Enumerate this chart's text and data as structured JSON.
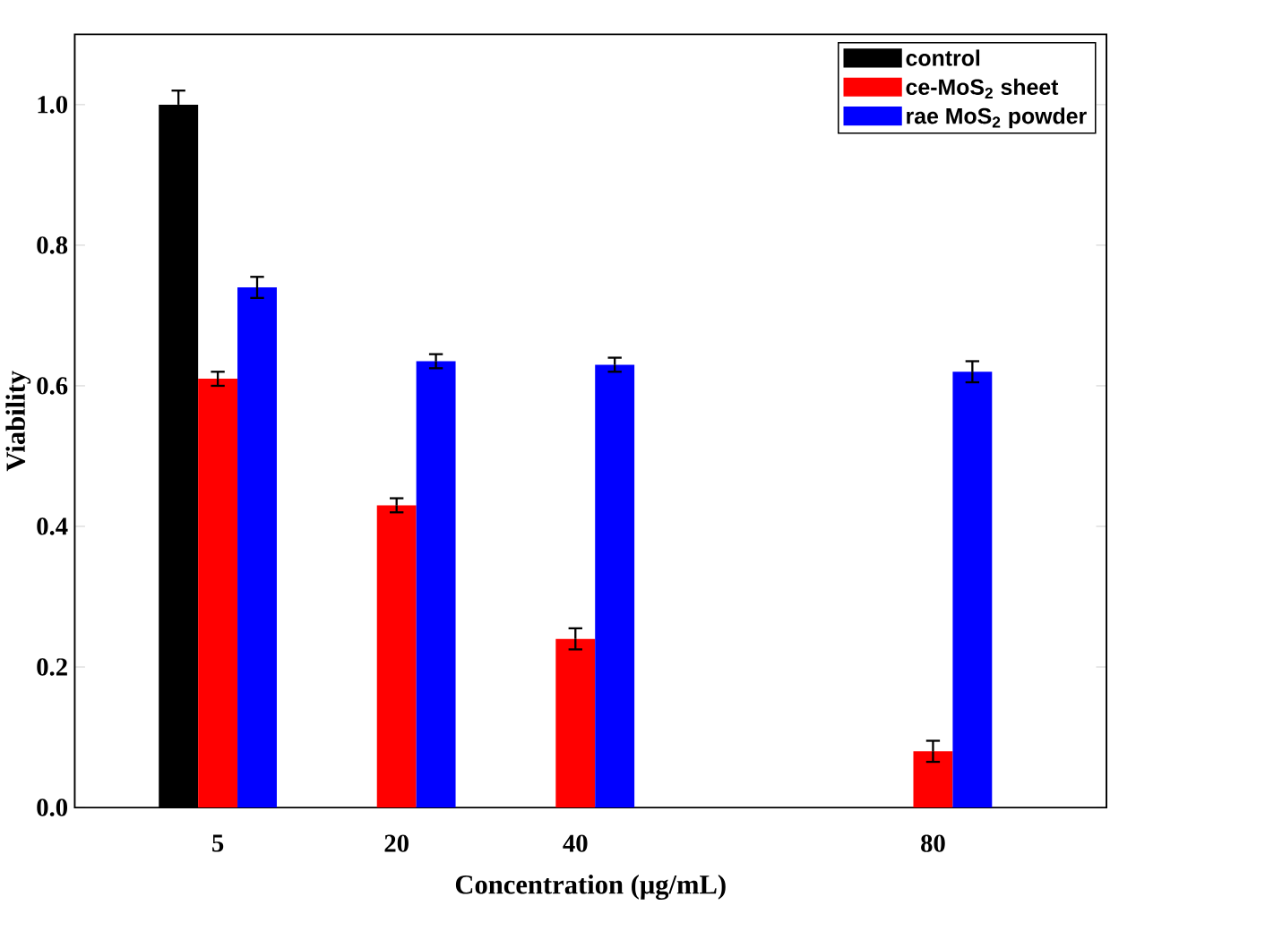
{
  "chart_data": {
    "type": "bar",
    "xlabel": "Concentration (μg/mL)",
    "ylabel": "Viability",
    "categories": [
      "5",
      "20",
      "40",
      null,
      "80"
    ],
    "series": [
      {
        "name": "control",
        "color": "#000000",
        "values": [
          1.0,
          null,
          null,
          null,
          null
        ],
        "errors": [
          0.02,
          null,
          null,
          null,
          null
        ]
      },
      {
        "name": "ce-MoS$_{2}$ sheet",
        "color": "#ff0000",
        "values": [
          0.61,
          0.43,
          0.24,
          null,
          0.08
        ],
        "errors": [
          0.01,
          0.01,
          0.015,
          null,
          0.015
        ]
      },
      {
        "name": "rae MoS$_{2}$ powder",
        "color": "#0000ff",
        "values": [
          0.74,
          0.635,
          0.63,
          null,
          0.62
        ],
        "errors": [
          0.015,
          0.01,
          0.01,
          null,
          0.015
        ]
      }
    ],
    "ylim": [
      0,
      1.1
    ],
    "yticks": [
      {
        "value": 0,
        "label": "0.0"
      },
      {
        "value": 0.2,
        "label": "0.2"
      },
      {
        "value": 0.4,
        "label": "0.4"
      },
      {
        "value": 0.6,
        "label": "0.6"
      },
      {
        "value": 0.8,
        "label": "0.8"
      },
      {
        "value": 1.0,
        "label": "1.0"
      }
    ],
    "legend": "top right"
  }
}
